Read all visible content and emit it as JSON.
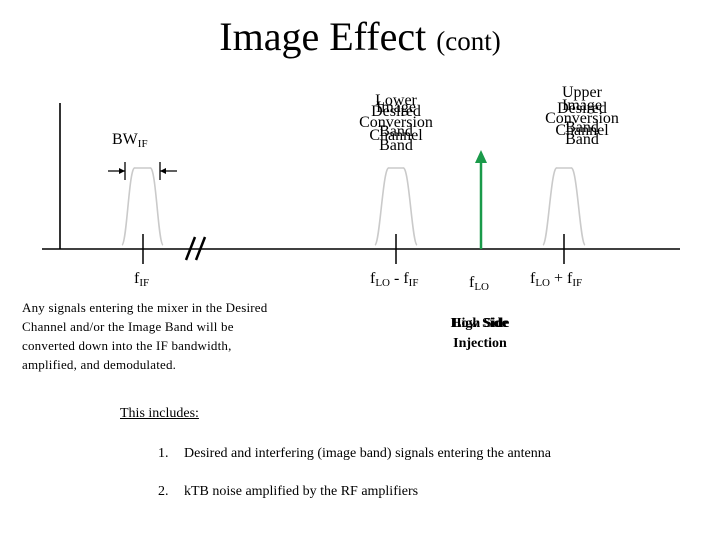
{
  "title": {
    "main": "Image Effect",
    "sub": "(cont)"
  },
  "bw_label": {
    "base": "BW",
    "sub": "IF"
  },
  "lower_band": {
    "line1": "Lower",
    "line2a": "Image",
    "line2b": "Desired",
    "line3": "Conversion",
    "line4a": "Band",
    "line4b": "Channel",
    "line5": "Band"
  },
  "upper_band": {
    "line1": "Upper",
    "line2a": "Image",
    "line2b": "Desired",
    "line3": "Conversion",
    "line4a": "Band",
    "line4b": "Channel",
    "line5": "Band"
  },
  "freq_labels": {
    "if": {
      "base": "f",
      "sub": "IF"
    },
    "lo_minus": {
      "a": "f",
      "a_sub": "LO",
      "op": " - f",
      "b_sub": "IF"
    },
    "lo": {
      "base": "f",
      "sub": "LO"
    },
    "lo_plus": {
      "a": "f",
      "a_sub": "LO",
      "op": " + f",
      "b_sub": "IF"
    }
  },
  "injection": {
    "line1a": "High Side",
    "line1b": "Low Side",
    "line2": "Injection"
  },
  "note": "Any signals entering the mixer in the Desired Channel and/or the Image Band will be converted down into the IF bandwidth, amplified, and demodulated.",
  "includes_label": "This includes:",
  "list": [
    {
      "num": "1.",
      "text": "Desired and interfering (image band) signals entering the antenna"
    },
    {
      "num": "2.",
      "text": "kTB noise amplified by the RF amplifiers"
    }
  ],
  "colors": {
    "lo_arrow": "#1a9a4a",
    "band_outline": "#c8c8c8",
    "axis": "#000000"
  }
}
